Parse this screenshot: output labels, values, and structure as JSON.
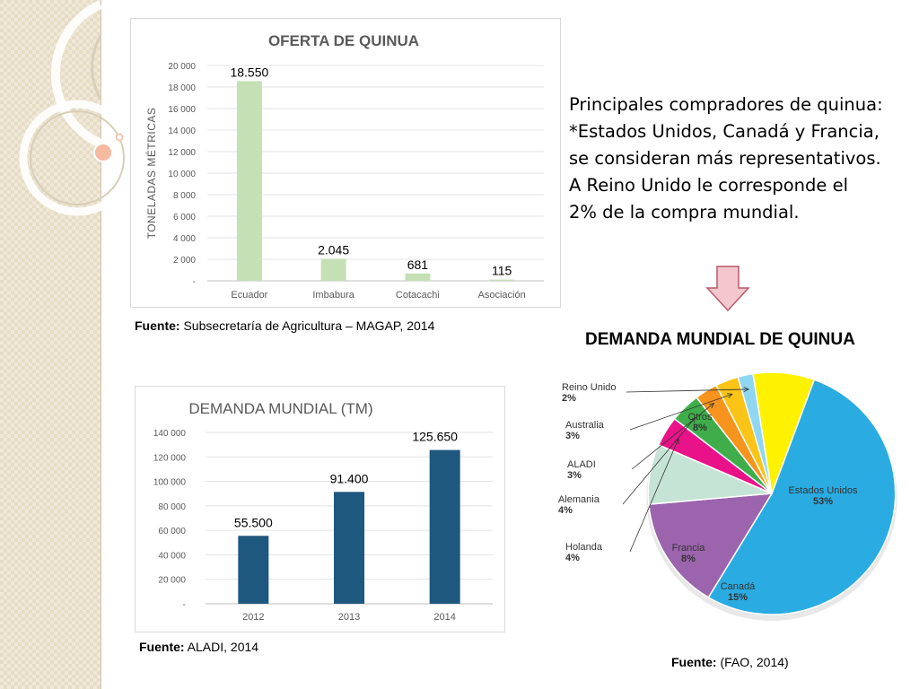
{
  "colors": {
    "offer_bar": "#c5e0b4",
    "demand_bar": "#1f587e",
    "arrow_fill": "#f4c7cf",
    "arrow_stroke": "#b85a6a"
  },
  "text_block": [
    "Principales compradores de quinua:",
    "*Estados Unidos, Canadá y Francia,",
    "se consideran más representativos.",
    "A Reino Unido le corresponde el",
    "2% de la compra mundial."
  ],
  "pie_title": "DEMANDA MUNDIAL DE QUINUA",
  "sources": {
    "offer": {
      "label": "Fuente:",
      "text": " Subsecretaría de Agricultura – MAGAP, 2014"
    },
    "demand": {
      "label": "Fuente:",
      "text": " ALADI, 2014"
    },
    "pie": {
      "label": "Fuente:",
      "text": " (FAO, 2014)"
    }
  },
  "chart_data": [
    {
      "type": "bar",
      "title": "OFERTA DE QUINUA",
      "ylabel": "TONELADAS MÉTRICAS",
      "xlabel": "",
      "categories": [
        "Ecuador",
        "Imbabura",
        "Cotacachi",
        "Asociación"
      ],
      "values": [
        18550,
        2045,
        681,
        115
      ],
      "data_labels": [
        "18.550",
        "2.045",
        "681",
        "115"
      ],
      "ylim": [
        0,
        20000
      ],
      "yticks": [
        0,
        2000,
        4000,
        6000,
        8000,
        10000,
        12000,
        14000,
        16000,
        18000,
        20000
      ],
      "ytick_labels": [
        "-",
        "2 000",
        "4 000",
        "6 000",
        "8 000",
        "10 000",
        "12 000",
        "14 000",
        "16 000",
        "18 000",
        "20 000"
      ],
      "grid": true
    },
    {
      "type": "bar",
      "title": "DEMANDA MUNDIAL (TM)",
      "xlabel": "",
      "ylabel": "",
      "categories": [
        "2012",
        "2013",
        "2014"
      ],
      "values": [
        55500,
        91400,
        125650
      ],
      "data_labels": [
        "55.500",
        "91.400",
        "125.650"
      ],
      "ylim": [
        0,
        140000
      ],
      "yticks": [
        0,
        20000,
        40000,
        60000,
        80000,
        100000,
        120000,
        140000
      ],
      "ytick_labels": [
        "-",
        "20 000",
        "40 000",
        "60 000",
        "80 000",
        "100 000",
        "120 000",
        "140 000"
      ],
      "grid": true
    },
    {
      "type": "pie",
      "title": "",
      "slices": [
        {
          "label": "Estados Unidos",
          "value": 53,
          "pct": "53%",
          "color": "#2aabe2"
        },
        {
          "label": "Canadá",
          "value": 15,
          "pct": "15%",
          "color": "#9b64ad"
        },
        {
          "label": "Francia",
          "value": 8,
          "pct": "8%",
          "color": "#c6e4d6"
        },
        {
          "label": "Holanda",
          "value": 4,
          "pct": "4%",
          "color": "#ea1289"
        },
        {
          "label": "Alemania",
          "value": 4,
          "pct": "4%",
          "color": "#3fad4a"
        },
        {
          "label": "ALADI",
          "value": 3,
          "pct": "3%",
          "color": "#f7941e"
        },
        {
          "label": "Australia",
          "value": 3,
          "pct": "3%",
          "color": "#fbc416"
        },
        {
          "label": "Reino Unido",
          "value": 2,
          "pct": "2%",
          "color": "#8fd6f2"
        },
        {
          "label": "Otros",
          "value": 8,
          "pct": "8%",
          "color": "#fff200"
        }
      ]
    }
  ]
}
